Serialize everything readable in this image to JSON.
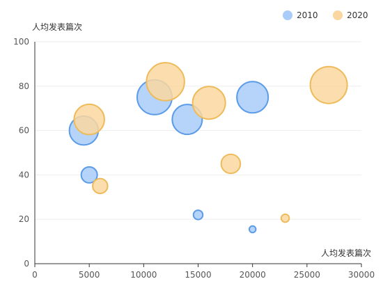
{
  "chart_data": {
    "type": "scatter",
    "variant": "bubble",
    "title": "",
    "xlabel": "人均发表篇次",
    "ylabel": "人均发表篇次",
    "xlim": [
      0,
      30000
    ],
    "ylim": [
      0,
      100
    ],
    "x_ticks": [
      "0",
      "5000",
      "10000",
      "15000",
      "20000",
      "25000",
      "30000"
    ],
    "y_ticks": [
      "0",
      "20",
      "40",
      "60",
      "80",
      "100"
    ],
    "grid": "horizontal",
    "legend_position": "top-right",
    "series": [
      {
        "name": "2010",
        "color": "#5B9BE8",
        "fill": "#A9CDF8",
        "points": [
          {
            "x": 4500,
            "y": 60,
            "size": 41.5
          },
          {
            "x": 5000,
            "y": 40,
            "size": 23
          },
          {
            "x": 11000,
            "y": 75,
            "size": 50
          },
          {
            "x": 14000,
            "y": 65,
            "size": 43
          },
          {
            "x": 15000,
            "y": 22,
            "size": 13.5
          },
          {
            "x": 20000,
            "y": 75,
            "size": 45
          },
          {
            "x": 20000,
            "y": 15.5,
            "size": 9.5
          }
        ]
      },
      {
        "name": "2020",
        "color": "#EDBB5A",
        "fill": "#FAD7A0",
        "points": [
          {
            "x": 5000,
            "y": 65,
            "size": 43.5
          },
          {
            "x": 6000,
            "y": 35,
            "size": 21.5
          },
          {
            "x": 12000,
            "y": 82,
            "size": 54.5
          },
          {
            "x": 16000,
            "y": 72.5,
            "size": 47
          },
          {
            "x": 18000,
            "y": 45,
            "size": 27.5
          },
          {
            "x": 23000,
            "y": 20.5,
            "size": 11.5
          },
          {
            "x": 27000,
            "y": 80.5,
            "size": 53
          }
        ]
      }
    ]
  }
}
